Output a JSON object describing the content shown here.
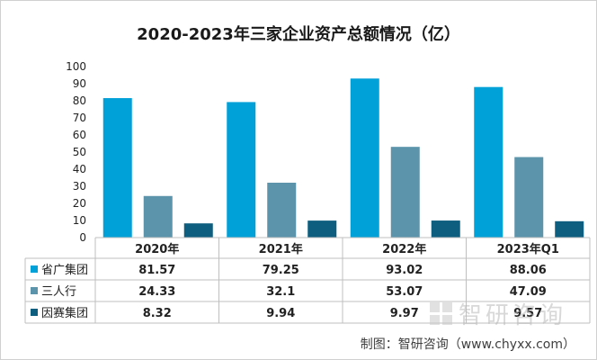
{
  "chart_data": {
    "type": "bar",
    "title": "2020-2023年三家企业资产总额情况（亿）",
    "categories": [
      "2020年",
      "2021年",
      "2022年",
      "2023年Q1"
    ],
    "ylim": [
      0,
      100
    ],
    "yticks": [
      "0",
      "10",
      "20",
      "30",
      "40",
      "50",
      "60",
      "70",
      "80",
      "90",
      "100"
    ],
    "grid": false,
    "legend": "data-table-left",
    "series": [
      {
        "name": "省广集团",
        "color": "#00a0d8",
        "values": [
          81.57,
          79.25,
          93.02,
          88.06
        ],
        "labels": [
          "81.57",
          "79.25",
          "93.02",
          "88.06"
        ]
      },
      {
        "name": "三人行",
        "color": "#5b94ab",
        "values": [
          24.33,
          32.1,
          53.07,
          47.09
        ],
        "labels": [
          "24.33",
          "32.1",
          "53.07",
          "47.09"
        ]
      },
      {
        "name": "因赛集团",
        "color": "#0d5e7f",
        "values": [
          8.32,
          9.94,
          9.97,
          9.57
        ],
        "labels": [
          "8.32",
          "9.94",
          "9.97",
          "9.57"
        ]
      }
    ]
  },
  "watermark": "智研咨询",
  "credit": "制图：智研咨询（www.chyxx.com）"
}
